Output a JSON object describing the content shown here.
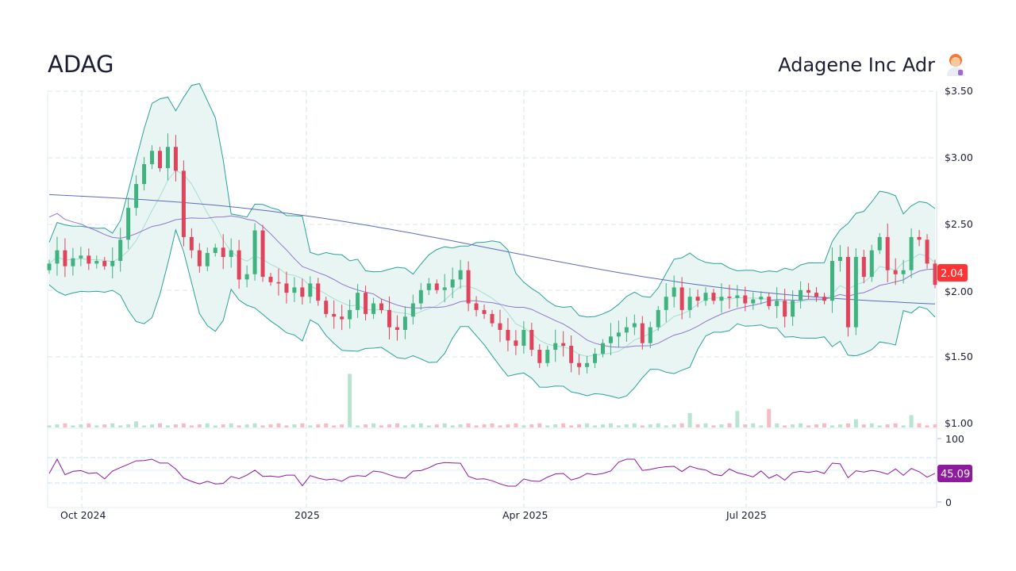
{
  "header": {
    "ticker": "ADAG",
    "company": "Adagene Inc Adr",
    "avatar_icon": "scientist-emoji"
  },
  "colors": {
    "up": "#3fb27f",
    "down": "#e0435a",
    "band_stroke": "#2aa198",
    "band_fill": "#e8f5f3",
    "band_mid": "#a8ddd3",
    "sma_long": "#5c6bc0",
    "sma_mid": "#9575cd",
    "rsi": "#8e1a9e",
    "last_price_bg": "#ff3333",
    "rsi_badge_bg": "#8e1a9e"
  },
  "chart_data": {
    "type": "candlestick",
    "x_range": [
      "2024-09-17",
      "2025-09-16"
    ],
    "x_ticks": [
      "Oct 2024",
      "2025",
      "Apr 2025",
      "Jul 2025"
    ],
    "y_ticks": [
      "$3.50",
      "$3.00",
      "$2.50",
      "$2.00",
      "$1.50",
      "$1.00"
    ],
    "ylim": [
      1.0,
      3.5
    ],
    "grid": true,
    "closes": [
      2.2,
      2.3,
      2.18,
      2.24,
      2.26,
      2.2,
      2.22,
      2.18,
      2.22,
      2.38,
      2.62,
      2.8,
      2.95,
      3.05,
      2.92,
      3.08,
      2.9,
      2.4,
      2.3,
      2.18,
      2.28,
      2.32,
      2.25,
      2.3,
      2.08,
      2.12,
      2.45,
      2.1,
      2.06,
      2.05,
      1.98,
      2.02,
      1.95,
      2.05,
      1.92,
      1.82,
      1.8,
      1.78,
      1.85,
      1.98,
      1.82,
      1.9,
      1.85,
      1.72,
      1.7,
      1.8,
      1.9,
      2.0,
      2.05,
      2.0,
      2.02,
      2.08,
      2.15,
      1.9,
      1.85,
      1.82,
      1.75,
      1.7,
      1.62,
      1.58,
      1.7,
      1.55,
      1.45,
      1.55,
      1.6,
      1.58,
      1.45,
      1.42,
      1.45,
      1.52,
      1.6,
      1.65,
      1.68,
      1.72,
      1.75,
      1.6,
      1.72,
      1.85,
      1.95,
      2.02,
      1.85,
      1.95,
      1.92,
      1.98,
      1.92,
      1.95,
      1.94,
      1.96,
      1.9,
      1.93,
      1.95,
      1.88,
      1.92,
      1.8,
      1.92,
      2.0,
      1.98,
      1.95,
      1.92,
      2.22,
      2.25,
      1.72,
      2.25,
      2.1,
      2.3,
      2.4,
      2.15,
      2.12,
      2.15,
      2.4,
      2.38,
      2.2,
      2.04
    ],
    "volume_spikes": {
      "11": 3,
      "38": 26,
      "81": 7,
      "87": 8,
      "91": 9,
      "102": 4,
      "109": 6
    },
    "last_price": "2.04",
    "rsi": {
      "ylim": [
        0,
        100
      ],
      "ticks": [
        "100",
        "0"
      ],
      "levels": [
        70,
        30
      ],
      "last": "45.09"
    }
  }
}
